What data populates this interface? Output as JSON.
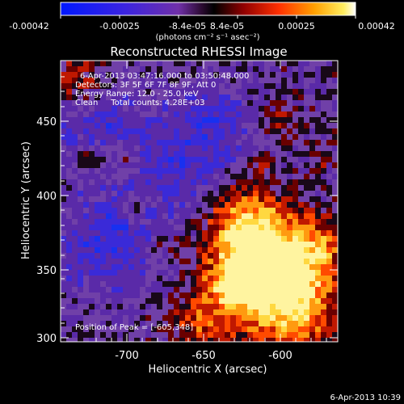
{
  "colorbar": {
    "ticks": [
      "-0.00042",
      "-0.00025",
      "-8.4e-05",
      "8.4e-05",
      "0.00025",
      "0.00042"
    ],
    "units": "(photons cm⁻² s⁻¹ asec⁻²)",
    "colors": [
      "#0010ff",
      "#4020d0",
      "#6a2cb0",
      "#8040a0",
      "#000000",
      "#5a0000",
      "#c01000",
      "#ff5000",
      "#ffa000",
      "#ffe040",
      "#ffffff"
    ]
  },
  "plot": {
    "title": "Reconstructed RHESSI Image",
    "info": [
      "6-Apr-2013 03:47:16.000 to 03:50:48.000",
      "Detectors: 3F 5F 6F 7F 8F 9F, Att 0",
      "Energy Range: 12.0 - 25.0 keV",
      "Clean     Total counts: 4.28E+03"
    ],
    "peak_text": "Position of Peak = [-605,348]",
    "xlabel": "Heliocentric X (arcsec)",
    "ylabel": "Heliocentric Y (arcsec)",
    "x_ticks": [
      "-700",
      "-650",
      "-600"
    ],
    "y_ticks": [
      "300",
      "350",
      "400",
      "450"
    ]
  },
  "footer": {
    "date": "6-Apr-2013 10:39"
  }
}
